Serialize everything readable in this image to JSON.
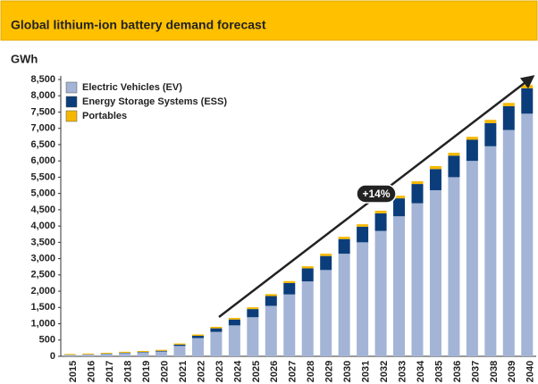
{
  "chart_data": {
    "type": "stacked_bar",
    "title": "Global lithium-ion battery demand forecast",
    "y_label": "GWh",
    "annotation": "+14%",
    "categories": [
      "2015",
      "2016",
      "2017",
      "2018",
      "2019",
      "2020",
      "2021",
      "2022",
      "2023",
      "2024",
      "2025",
      "2026",
      "2027",
      "2028",
      "2029",
      "2030",
      "2031",
      "2032",
      "2033",
      "2034",
      "2035",
      "2036",
      "2037",
      "2038",
      "2039",
      "2040"
    ],
    "series": [
      {
        "name": "Electric Vehicles (EV)",
        "color": "#a3b4d6",
        "values": [
          40,
          55,
          75,
          100,
          120,
          150,
          320,
          560,
          750,
          950,
          1200,
          1550,
          1900,
          2300,
          2650,
          3150,
          3500,
          3850,
          4300,
          4700,
          5100,
          5500,
          6000,
          6450,
          6950,
          7450
        ]
      },
      {
        "name": "Energy Storage Systems (ESS)",
        "color": "#0b3d7a",
        "values": [
          5,
          5,
          8,
          10,
          15,
          20,
          40,
          70,
          110,
          180,
          250,
          300,
          350,
          400,
          430,
          450,
          480,
          540,
          550,
          590,
          650,
          660,
          650,
          710,
          730,
          780
        ]
      },
      {
        "name": "Portables",
        "color": "#f5b800",
        "values": [
          25,
          25,
          25,
          30,
          30,
          30,
          35,
          40,
          45,
          50,
          55,
          60,
          60,
          65,
          70,
          70,
          75,
          80,
          80,
          85,
          90,
          90,
          90,
          100,
          100,
          100
        ]
      }
    ],
    "ylim": [
      0,
      8500
    ],
    "yticks": [
      0,
      500,
      {
        "value": 1000,
        "label": "1,000"
      },
      {
        "value": 1500,
        "label": "1,500"
      },
      {
        "value": 2000,
        "label": "2,000"
      },
      {
        "value": 2500,
        "label": "2,500"
      },
      {
        "value": 3000,
        "label": "3,000"
      },
      {
        "value": 3500,
        "label": "3,500"
      },
      {
        "value": 4000,
        "label": "4,000"
      },
      {
        "value": 4500,
        "label": "4,500"
      },
      {
        "value": 5000,
        "label": "5,000"
      },
      {
        "value": 5500,
        "label": "5,500"
      },
      {
        "value": 6000,
        "label": "6,000"
      },
      {
        "value": 6500,
        "label": "6,500"
      },
      {
        "value": 7000,
        "label": "7,000"
      },
      {
        "value": 7500,
        "label": "7,500"
      },
      {
        "value": 8000,
        "label": "8,000"
      },
      {
        "value": 8500,
        "label": "8,500"
      }
    ],
    "legend": "top-left"
  }
}
